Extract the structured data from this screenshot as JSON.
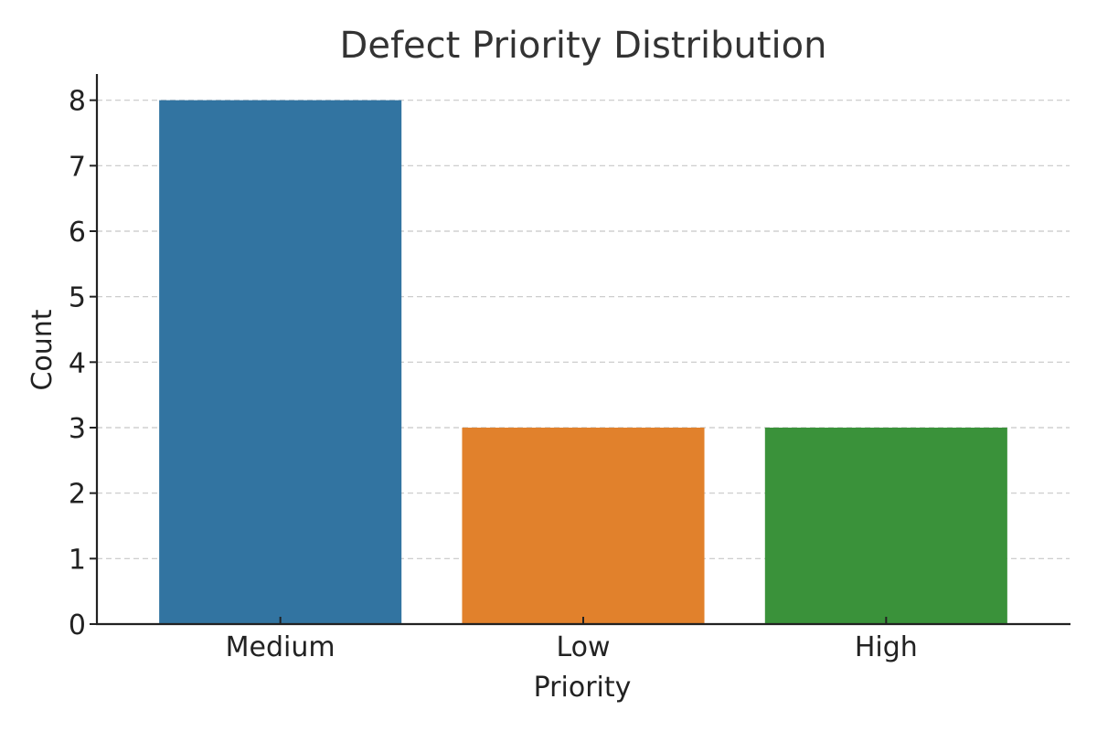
{
  "chart_data": {
    "type": "bar",
    "title": "Defect Priority Distribution",
    "xlabel": "Priority",
    "ylabel": "Count",
    "categories": [
      "Medium",
      "Low",
      "High"
    ],
    "values": [
      8,
      3,
      3
    ],
    "colors": [
      "#3274a1",
      "#e1812c",
      "#3a923a"
    ],
    "ylim": [
      0,
      8.4
    ],
    "yticks": [
      0,
      1,
      2,
      3,
      4,
      5,
      6,
      7,
      8
    ],
    "ytick_labels": [
      "0",
      "1",
      "2",
      "3",
      "4",
      "5",
      "6",
      "7",
      "8"
    ],
    "grid": "y-dashed",
    "legend": "none"
  }
}
